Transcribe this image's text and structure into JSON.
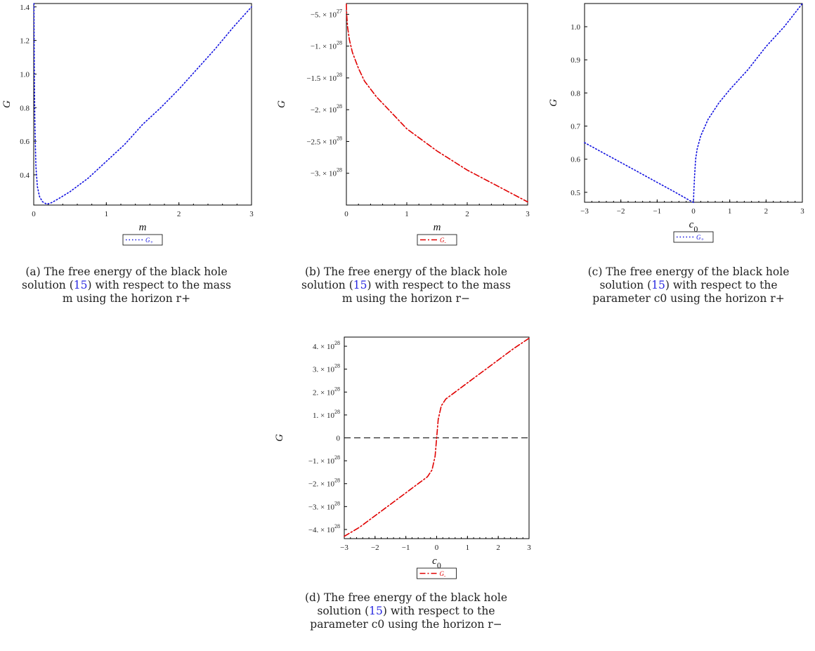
{
  "colors": {
    "plus": "#1010e0",
    "minus": "#e00000",
    "zero_line": "#000000"
  },
  "charts": [
    {
      "id": "a",
      "type": "line",
      "ylabel": "G",
      "xlabel": "m",
      "legend": "G+",
      "line_style": "dotted",
      "color_key": "plus",
      "xlim": [
        0,
        3
      ],
      "ylim": [
        0.22,
        1.42
      ],
      "xticks": [
        {
          "v": 0,
          "t": "0"
        },
        {
          "v": 1,
          "t": "1"
        },
        {
          "v": 2,
          "t": "2"
        },
        {
          "v": 3,
          "t": "3"
        }
      ],
      "yticks": [
        {
          "v": 0.4,
          "t": "0.4"
        },
        {
          "v": 0.6,
          "t": "0.6"
        },
        {
          "v": 0.8,
          "t": "0.8"
        },
        {
          "v": 1.0,
          "t": "1.0"
        },
        {
          "v": 1.2,
          "t": "1.2"
        },
        {
          "v": 1.4,
          "t": "1.4"
        }
      ],
      "x": [
        0.003,
        0.006,
        0.01,
        0.015,
        0.02,
        0.03,
        0.05,
        0.08,
        0.12,
        0.18,
        0.25,
        0.35,
        0.5,
        0.75,
        1.0,
        1.25,
        1.5,
        1.75,
        2.0,
        2.25,
        2.5,
        2.75,
        3.0
      ],
      "y": [
        1.42,
        1.2,
        0.95,
        0.75,
        0.62,
        0.45,
        0.33,
        0.27,
        0.24,
        0.225,
        0.235,
        0.26,
        0.3,
        0.38,
        0.48,
        0.58,
        0.7,
        0.8,
        0.91,
        1.03,
        1.15,
        1.28,
        1.4
      ]
    },
    {
      "id": "b",
      "type": "line",
      "ylabel": "G",
      "xlabel": "m",
      "legend": "G-",
      "line_style": "dashdot",
      "color_key": "minus",
      "xlim": [
        0,
        3
      ],
      "ylim": [
        -3.5e+28,
        -3.3e+27
      ],
      "xticks": [
        {
          "v": 0,
          "t": "0"
        },
        {
          "v": 1,
          "t": "1"
        },
        {
          "v": 2,
          "t": "2"
        },
        {
          "v": 3,
          "t": "3"
        }
      ],
      "yticks": [
        {
          "v": -5e+27,
          "t": "-5. × 10",
          "e": "27"
        },
        {
          "v": -1e+28,
          "t": "-1. × 10",
          "e": "28"
        },
        {
          "v": -1.5e+28,
          "t": "-1.5 × 10",
          "e": "28"
        },
        {
          "v": -2e+28,
          "t": "-2. × 10",
          "e": "28"
        },
        {
          "v": -2.5e+28,
          "t": "-2.5 × 10",
          "e": "28"
        },
        {
          "v": -3e+28,
          "t": "-3. × 10",
          "e": "28"
        }
      ],
      "x": [
        0.0,
        0.005,
        0.02,
        0.05,
        0.1,
        0.2,
        0.3,
        0.5,
        0.75,
        1.0,
        1.5,
        2.0,
        2.5,
        3.0
      ],
      "y": [
        -3.4e+27,
        -5e+27,
        -7e+27,
        -9e+27,
        -1.1e+28,
        -1.35e+28,
        -1.55e+28,
        -1.8e+28,
        -2.05e+28,
        -2.3e+28,
        -2.65e+28,
        -2.95e+28,
        -3.2e+28,
        -3.45e+28
      ]
    },
    {
      "id": "c",
      "type": "line",
      "ylabel": "G",
      "xlabel": "c",
      "xlabel_sub": "0",
      "legend": "G+",
      "line_style": "dotted",
      "color_key": "plus",
      "xlim": [
        -3,
        3
      ],
      "ylim": [
        0.47,
        1.07
      ],
      "xticks": [
        {
          "v": -3,
          "t": "-3"
        },
        {
          "v": -2,
          "t": "-2"
        },
        {
          "v": -1,
          "t": "-1"
        },
        {
          "v": 0,
          "t": "0"
        },
        {
          "v": 1,
          "t": "1"
        },
        {
          "v": 2,
          "t": "2"
        },
        {
          "v": 3,
          "t": "3"
        }
      ],
      "yticks": [
        {
          "v": 0.5,
          "t": "0.5"
        },
        {
          "v": 0.6,
          "t": "0.6"
        },
        {
          "v": 0.7,
          "t": "0.7"
        },
        {
          "v": 0.8,
          "t": "0.8"
        },
        {
          "v": 0.9,
          "t": "0.9"
        },
        {
          "v": 1.0,
          "t": "1.0"
        }
      ],
      "x": [
        -3,
        -2.5,
        -2,
        -1.5,
        -1,
        -0.5,
        -0.1,
        0,
        0.01,
        0.03,
        0.06,
        0.1,
        0.2,
        0.4,
        0.7,
        1.0,
        1.5,
        2.0,
        2.5,
        3.0
      ],
      "y": [
        0.65,
        0.62,
        0.59,
        0.56,
        0.53,
        0.5,
        0.475,
        0.47,
        0.5,
        0.55,
        0.6,
        0.63,
        0.67,
        0.72,
        0.77,
        0.81,
        0.87,
        0.94,
        1.0,
        1.07
      ]
    },
    {
      "id": "d",
      "type": "line",
      "ylabel": "G",
      "xlabel": "c",
      "xlabel_sub": "0",
      "legend": "G-",
      "line_style": "dashdot",
      "color_key": "minus",
      "zero_line": true,
      "xlim": [
        -3,
        3
      ],
      "ylim": [
        -4.4e+28,
        4.4e+28
      ],
      "xticks": [
        {
          "v": -3,
          "t": "-3"
        },
        {
          "v": -2,
          "t": "-2"
        },
        {
          "v": -1,
          "t": "-1"
        },
        {
          "v": 0,
          "t": "0"
        },
        {
          "v": 1,
          "t": "1"
        },
        {
          "v": 2,
          "t": "2"
        },
        {
          "v": 3,
          "t": "3"
        }
      ],
      "yticks": [
        {
          "v": 4e+28,
          "t": "4. × 10",
          "e": "28"
        },
        {
          "v": 3e+28,
          "t": "3. × 10",
          "e": "28"
        },
        {
          "v": 2e+28,
          "t": "2. × 10",
          "e": "28"
        },
        {
          "v": 1e+28,
          "t": "1. × 10",
          "e": "28"
        },
        {
          "v": 0,
          "t": "0"
        },
        {
          "v": -1e+28,
          "t": "-1. × 10",
          "e": "28"
        },
        {
          "v": -2e+28,
          "t": "-2. × 10",
          "e": "28"
        },
        {
          "v": -3e+28,
          "t": "-3. × 10",
          "e": "28"
        },
        {
          "v": -4e+28,
          "t": "-4. × 10",
          "e": "28"
        }
      ],
      "x": [
        -3,
        -2.5,
        -2,
        -1.5,
        -1,
        -0.6,
        -0.3,
        -0.15,
        -0.05,
        0,
        0.05,
        0.15,
        0.3,
        0.6,
        1,
        1.5,
        2,
        2.5,
        3
      ],
      "y": [
        -4.3e+28,
        -3.9e+28,
        -3.4e+28,
        -2.9e+28,
        -2.4e+28,
        -2e+28,
        -1.7e+28,
        -1.4e+28,
        -8e+27,
        0,
        8e+27,
        1.4e+28,
        1.7e+28,
        2e+28,
        2.4e+28,
        2.9e+28,
        3.4e+28,
        3.9e+28,
        4.35e+28
      ]
    }
  ],
  "captions": {
    "a": {
      "pre": "(a) The free energy of the black hole solution (",
      "ref": "15",
      "post": ") with respect to the mass m using the horizon r+"
    },
    "b": {
      "pre": "(b) The free energy of the black hole solution (",
      "ref": "15",
      "post": ") with respect to the mass m using the horizon r−"
    },
    "c": {
      "pre": "(c) The free energy of the black hole solution (",
      "ref": "15",
      "post": ") with respect to the parameter c0 using the horizon r+"
    },
    "d": {
      "pre": "(d) The free energy of the black hole solution (",
      "ref": "15",
      "post": ") with respect to the parameter c0 using the horizon r−"
    }
  }
}
